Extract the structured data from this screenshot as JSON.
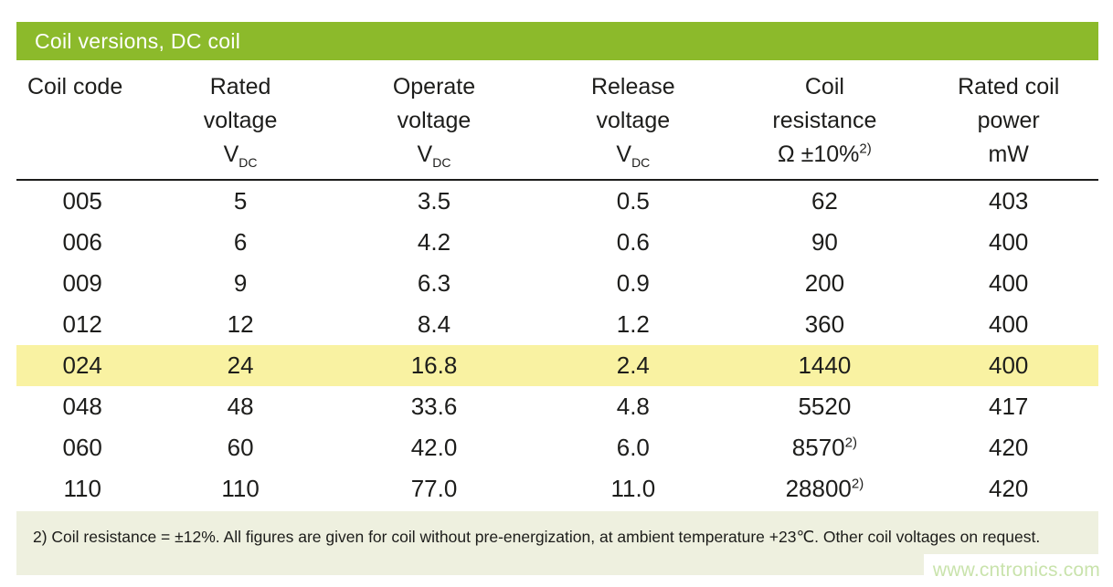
{
  "title": "Coil versions, DC coil",
  "table": {
    "columns": [
      {
        "id": "coil-code",
        "label_lines": [
          "Coil code"
        ],
        "align": "left",
        "unit": null
      },
      {
        "id": "rated-voltage",
        "label_lines": [
          "Rated",
          "voltage"
        ],
        "align": "center",
        "unit": {
          "main": "V",
          "sub": "DC"
        }
      },
      {
        "id": "operate-voltage",
        "label_lines": [
          "Operate",
          "voltage"
        ],
        "align": "center",
        "unit": {
          "main": "V",
          "sub": "DC"
        }
      },
      {
        "id": "release-voltage",
        "label_lines": [
          "Release",
          "voltage"
        ],
        "align": "center",
        "unit": {
          "main": "V",
          "sub": "DC"
        }
      },
      {
        "id": "coil-resistance",
        "label_lines": [
          "Coil",
          "resistance"
        ],
        "align": "center",
        "unit": {
          "main": "Ω ±10%",
          "sup": "2)"
        }
      },
      {
        "id": "rated-coil-power",
        "label_lines": [
          "Rated coil",
          "power"
        ],
        "align": "center",
        "unit": {
          "main": "mW"
        }
      }
    ],
    "rows": [
      {
        "highlight": false,
        "cells": [
          "005",
          "5",
          "3.5",
          "0.5",
          {
            "text": "62"
          },
          "403"
        ]
      },
      {
        "highlight": false,
        "cells": [
          "006",
          "6",
          "4.2",
          "0.6",
          {
            "text": "90"
          },
          "400"
        ]
      },
      {
        "highlight": false,
        "cells": [
          "009",
          "9",
          "6.3",
          "0.9",
          {
            "text": "200"
          },
          "400"
        ]
      },
      {
        "highlight": false,
        "cells": [
          "012",
          "12",
          "8.4",
          "1.2",
          {
            "text": "360"
          },
          "400"
        ]
      },
      {
        "highlight": true,
        "cells": [
          "024",
          "24",
          "16.8",
          "2.4",
          {
            "text": "1440"
          },
          "400"
        ]
      },
      {
        "highlight": false,
        "cells": [
          "048",
          "48",
          "33.6",
          "4.8",
          {
            "text": "5520"
          },
          "417"
        ]
      },
      {
        "highlight": false,
        "cells": [
          "060",
          "60",
          "42.0",
          "6.0",
          {
            "text": "8570",
            "sup": "2)"
          },
          "420"
        ]
      },
      {
        "highlight": false,
        "cells": [
          "110",
          "110",
          "77.0",
          "11.0",
          {
            "text": "28800",
            "sup": "2)"
          },
          "420"
        ]
      }
    ]
  },
  "footnote": "2) Coil resistance = ±12%. All figures are given for coil without pre-energization, at ambient temperature +23℃. Other coil voltages on request.",
  "watermark": "www.cntronics.com",
  "colors": {
    "header_bar": "#8cba2b",
    "highlight_row": "#f9f2a2",
    "footnote_bg": "#eef0df",
    "watermark_text": "#c9e3ac",
    "text": "#1d1d1b"
  }
}
